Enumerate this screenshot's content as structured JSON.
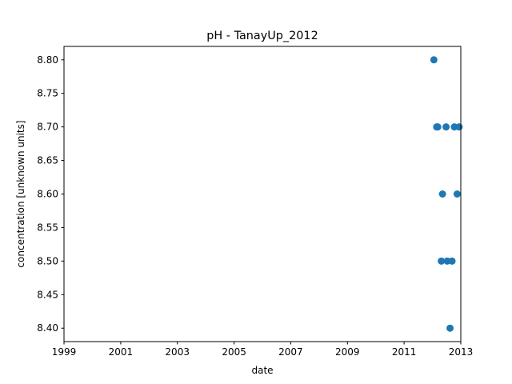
{
  "chart_data": {
    "type": "scatter",
    "title": "pH - TanayUp_2012",
    "xlabel": "date",
    "ylabel": "concentration [unknown units]",
    "x_ticks": [
      "1999",
      "2001",
      "2003",
      "2005",
      "2007",
      "2009",
      "2011",
      "2013"
    ],
    "y_ticks": [
      "8.40",
      "8.45",
      "8.50",
      "8.55",
      "8.60",
      "8.65",
      "8.70",
      "8.75",
      "8.80"
    ],
    "xlim": [
      "1999-01-01",
      "2013-01-01"
    ],
    "ylim": [
      8.38,
      8.82
    ],
    "marker_color": "#1f77b4",
    "grid": false,
    "points": [
      {
        "x": "2012-01-20",
        "y": 8.8
      },
      {
        "x": "2012-02-25",
        "y": 8.7
      },
      {
        "x": "2012-03-10",
        "y": 8.7
      },
      {
        "x": "2012-04-25",
        "y": 8.5
      },
      {
        "x": "2012-05-10",
        "y": 8.6
      },
      {
        "x": "2012-06-25",
        "y": 8.7
      },
      {
        "x": "2012-07-10",
        "y": 8.5
      },
      {
        "x": "2012-08-15",
        "y": 8.4
      },
      {
        "x": "2012-09-10",
        "y": 8.5
      },
      {
        "x": "2012-10-10",
        "y": 8.7
      },
      {
        "x": "2012-11-15",
        "y": 8.6
      },
      {
        "x": "2012-12-10",
        "y": 8.7
      }
    ]
  }
}
